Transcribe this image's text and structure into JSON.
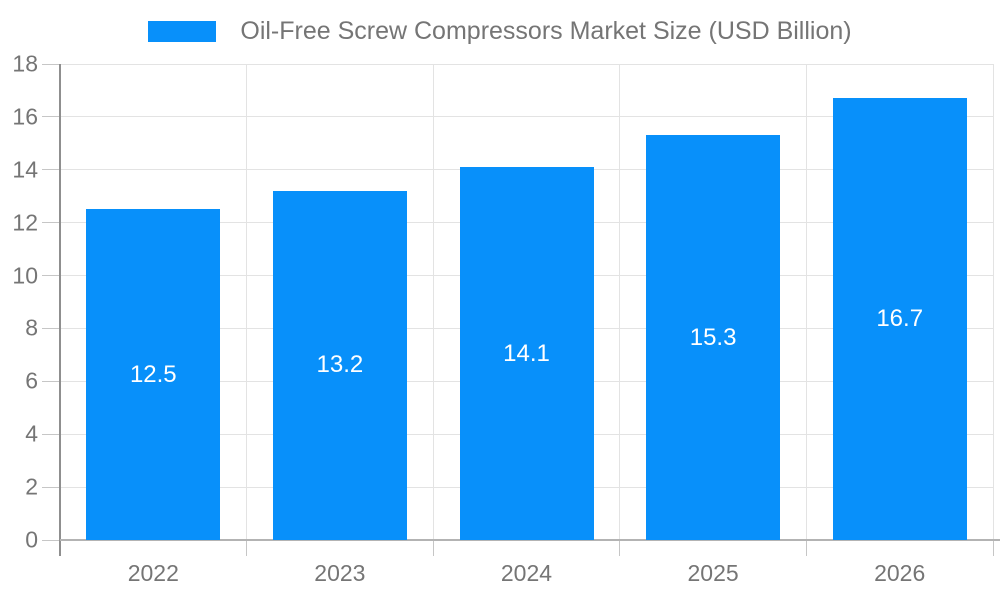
{
  "legend": {
    "label": "Oil-Free Screw Compressors Market Size (USD Billion)"
  },
  "chart_data": {
    "type": "bar",
    "title": "Oil-Free Screw Compressors Market Size (USD Billion)",
    "categories": [
      "2022",
      "2023",
      "2024",
      "2025",
      "2026"
    ],
    "values": [
      12.5,
      13.2,
      14.1,
      15.3,
      16.7
    ],
    "value_labels": [
      "12.5",
      "13.2",
      "14.1",
      "15.3",
      "16.7"
    ],
    "xlabel": "",
    "ylabel": "",
    "ylim": [
      0,
      18
    ],
    "ytick_step": 2,
    "yticks": [
      0,
      2,
      4,
      6,
      8,
      10,
      12,
      14,
      16,
      18
    ],
    "grid": true,
    "legend_position": "top",
    "value_label_position": "inside-center"
  },
  "colors": {
    "bar": "#0890fa",
    "value_label_text": "#ffffff",
    "axis_text": "#757575",
    "legend_text": "#757575",
    "gridline": "#e3e3e3",
    "tick": "#c6c6c6",
    "y_axis_line": "#8f8f8f",
    "x_axis_line": "#b3b3b3",
    "background": "#ffffff"
  }
}
